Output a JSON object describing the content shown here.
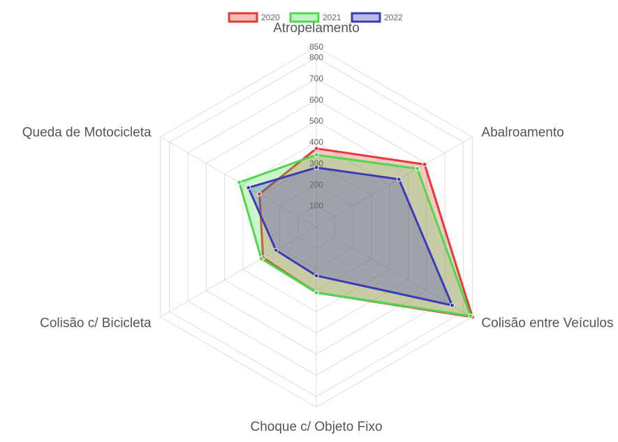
{
  "chart_data": {
    "type": "radar",
    "title": "",
    "categories": [
      "Atropelamento",
      "Abalroamento",
      "Colisão entre Veículos",
      "Choque c/ Objeto Fixo",
      "Colisão c/ Bicicleta",
      "Queda de Motocicleta"
    ],
    "series": [
      {
        "name": "2020",
        "values": [
          370,
          590,
          850,
          310,
          290,
          310
        ],
        "color": "#e53935"
      },
      {
        "name": "2021",
        "values": [
          340,
          550,
          840,
          310,
          300,
          420
        ],
        "color": "#4cd94c"
      },
      {
        "name": "2022",
        "values": [
          280,
          450,
          740,
          230,
          220,
          370
        ],
        "color": "#3b3bb8"
      }
    ],
    "r_range": [
      0,
      850
    ],
    "ticks": [
      "100",
      "200",
      "300",
      "400",
      "500",
      "600",
      "700",
      "800",
      "850"
    ],
    "tick_values": [
      100,
      200,
      300,
      400,
      500,
      600,
      700,
      800,
      850
    ],
    "grid": true,
    "legend_position": "top"
  }
}
